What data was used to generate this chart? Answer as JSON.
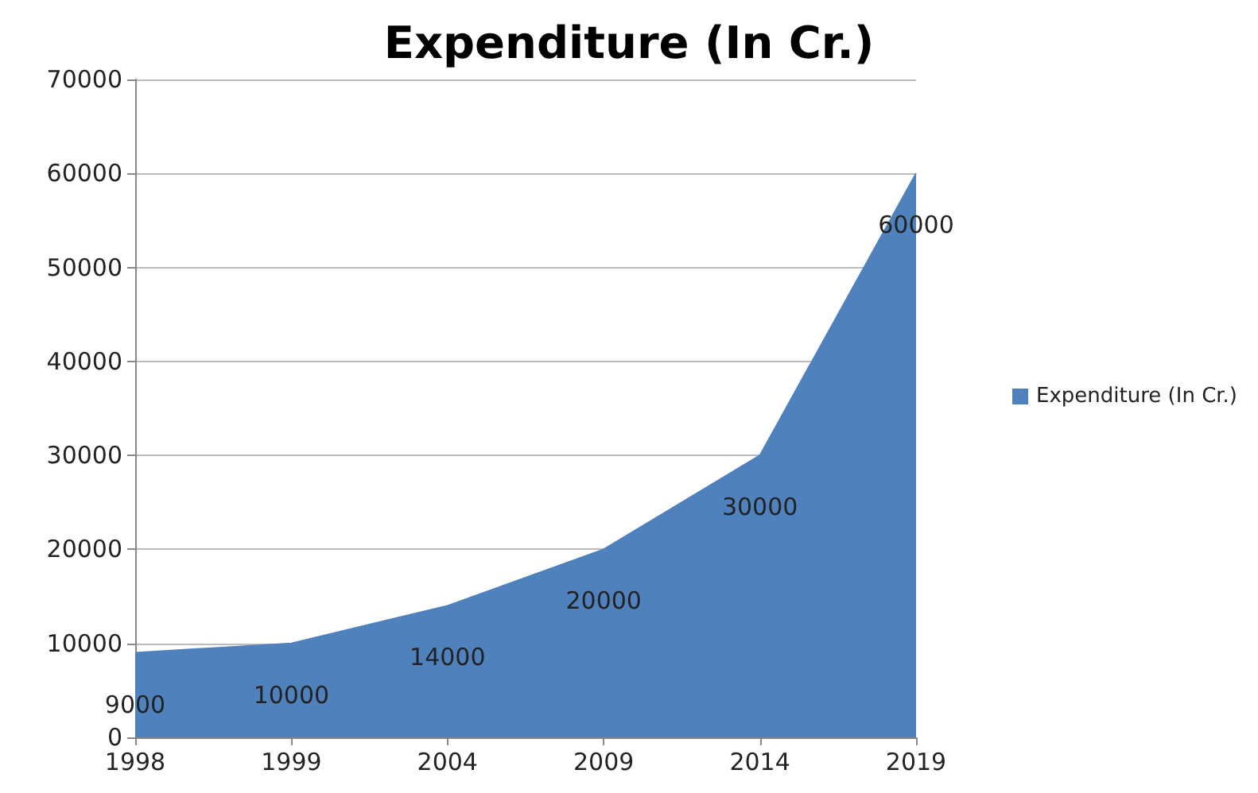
{
  "chart_data": {
    "type": "area",
    "title": "Expenditure (In Cr.)",
    "categories": [
      "1998",
      "1999",
      "2004",
      "2009",
      "2014",
      "2019"
    ],
    "series": [
      {
        "name": "Expenditure (In Cr.)",
        "color": "#4f81bd",
        "values": [
          9000,
          10000,
          14000,
          20000,
          30000,
          60000
        ]
      }
    ],
    "ylim": [
      0,
      70000
    ],
    "yticks": [
      0,
      10000,
      20000,
      30000,
      40000,
      50000,
      60000,
      70000
    ],
    "grid": "y",
    "legend": "right",
    "data_labels": true
  }
}
